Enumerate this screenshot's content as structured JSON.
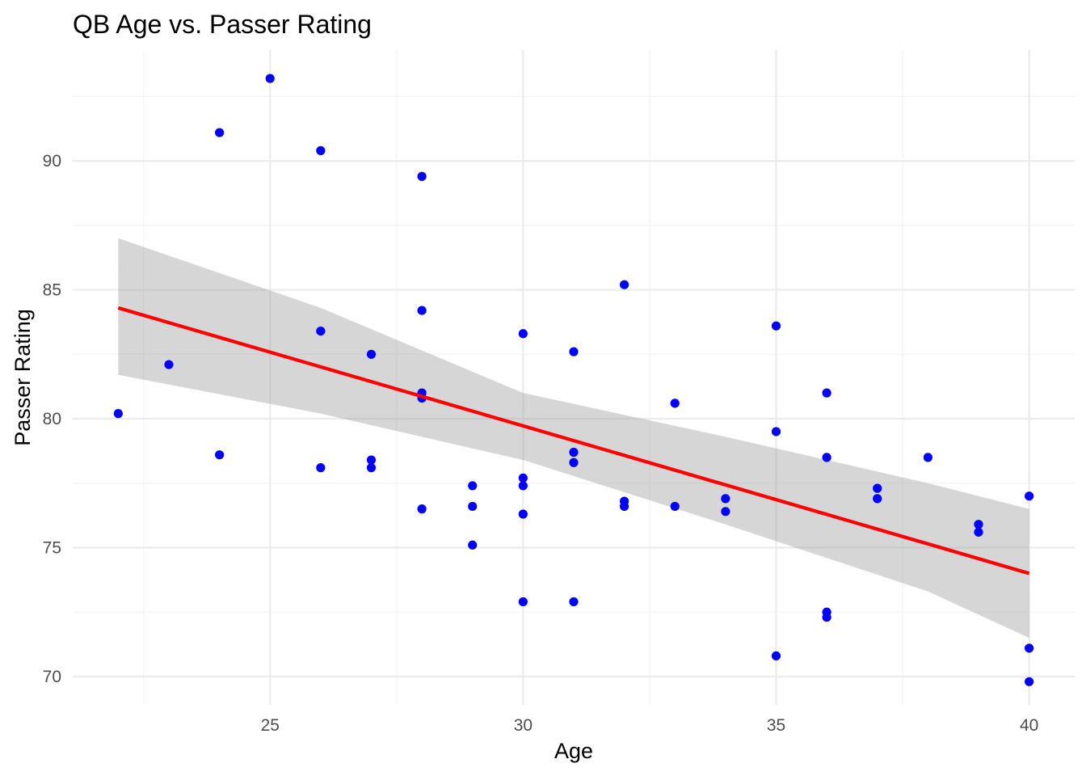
{
  "chart_data": {
    "type": "scatter",
    "title": "QB Age vs. Passer Rating",
    "xlabel": "Age",
    "ylabel": "Passer Rating",
    "xlim": [
      21.1,
      40.9
    ],
    "ylim": [
      68.9,
      94.3
    ],
    "x_ticks": [
      25,
      30,
      35,
      40
    ],
    "y_ticks": [
      70,
      75,
      80,
      85,
      90
    ],
    "grid": true,
    "legend": "none",
    "colors": {
      "points": "#0000ff",
      "fit_line": "#ff0000",
      "ci_band": "#999999"
    },
    "points": [
      {
        "x": 22,
        "y": 80.2
      },
      {
        "x": 23,
        "y": 82.1
      },
      {
        "x": 24,
        "y": 91.1
      },
      {
        "x": 24,
        "y": 78.6
      },
      {
        "x": 25,
        "y": 93.2
      },
      {
        "x": 26,
        "y": 90.4
      },
      {
        "x": 26,
        "y": 83.4
      },
      {
        "x": 26,
        "y": 78.1
      },
      {
        "x": 27,
        "y": 82.5
      },
      {
        "x": 27,
        "y": 78.4
      },
      {
        "x": 27,
        "y": 78.1
      },
      {
        "x": 28,
        "y": 89.4
      },
      {
        "x": 28,
        "y": 84.2
      },
      {
        "x": 28,
        "y": 81.0
      },
      {
        "x": 28,
        "y": 80.8
      },
      {
        "x": 28,
        "y": 76.5
      },
      {
        "x": 29,
        "y": 77.4
      },
      {
        "x": 29,
        "y": 76.6
      },
      {
        "x": 29,
        "y": 75.1
      },
      {
        "x": 30,
        "y": 83.3
      },
      {
        "x": 30,
        "y": 77.7
      },
      {
        "x": 30,
        "y": 77.4
      },
      {
        "x": 30,
        "y": 76.3
      },
      {
        "x": 30,
        "y": 72.9
      },
      {
        "x": 31,
        "y": 82.6
      },
      {
        "x": 31,
        "y": 78.7
      },
      {
        "x": 31,
        "y": 78.3
      },
      {
        "x": 31,
        "y": 72.9
      },
      {
        "x": 32,
        "y": 85.2
      },
      {
        "x": 32,
        "y": 76.8
      },
      {
        "x": 32,
        "y": 76.6
      },
      {
        "x": 33,
        "y": 80.6
      },
      {
        "x": 33,
        "y": 76.6
      },
      {
        "x": 34,
        "y": 76.9
      },
      {
        "x": 34,
        "y": 76.4
      },
      {
        "x": 35,
        "y": 83.6
      },
      {
        "x": 35,
        "y": 79.5
      },
      {
        "x": 35,
        "y": 70.8
      },
      {
        "x": 36,
        "y": 81.0
      },
      {
        "x": 36,
        "y": 78.5
      },
      {
        "x": 36,
        "y": 72.5
      },
      {
        "x": 36,
        "y": 72.3
      },
      {
        "x": 37,
        "y": 77.3
      },
      {
        "x": 37,
        "y": 76.9
      },
      {
        "x": 38,
        "y": 78.5
      },
      {
        "x": 39,
        "y": 75.9
      },
      {
        "x": 39,
        "y": 75.6
      },
      {
        "x": 40,
        "y": 77.0
      },
      {
        "x": 40,
        "y": 71.1
      },
      {
        "x": 40,
        "y": 69.8
      }
    ],
    "fit_line": {
      "x": [
        22,
        40
      ],
      "y": [
        84.3,
        74.0
      ]
    },
    "ci_band": {
      "x": [
        22,
        26,
        30,
        34,
        38,
        40
      ],
      "lower": [
        81.7,
        80.2,
        78.4,
        75.9,
        73.3,
        71.5
      ],
      "upper": [
        87.0,
        84.3,
        81.0,
        79.3,
        77.5,
        76.5
      ]
    }
  }
}
